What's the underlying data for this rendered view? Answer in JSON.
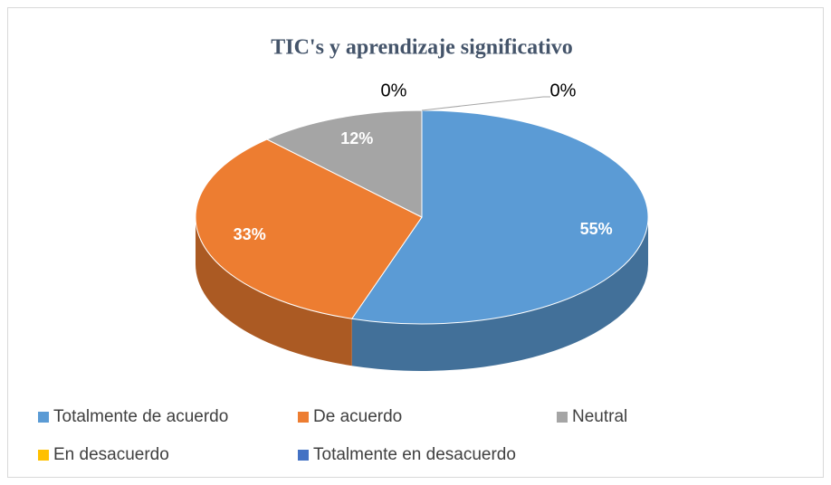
{
  "chart_data": {
    "type": "pie",
    "title": "TIC's y aprendizaje significativo",
    "categories": [
      "Totalmente de acuerdo",
      "De acuerdo",
      "Neutral",
      "En desacuerdo",
      "Totalmente en desacuerdo"
    ],
    "values": [
      55,
      33,
      12,
      0,
      0
    ],
    "value_labels": [
      "55%",
      "33%",
      "12%",
      "0%",
      "0%"
    ],
    "colors": [
      "#5b9bd5",
      "#ed7d31",
      "#a5a5a5",
      "#ffc000",
      "#4472c4"
    ],
    "legend": "bottom"
  }
}
